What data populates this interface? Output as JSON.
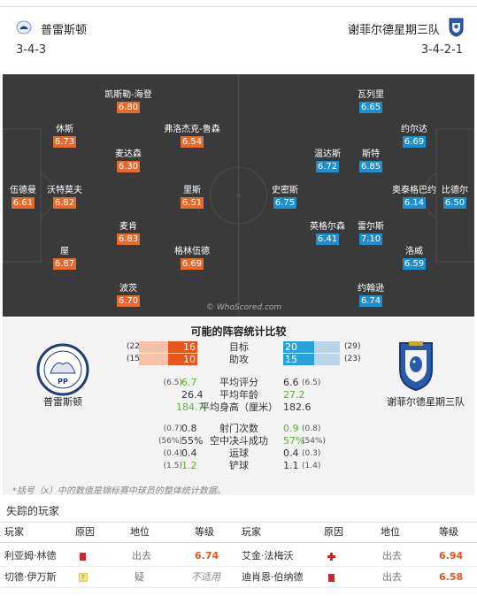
{
  "top_cut": "·",
  "header": {
    "home_team": "普雷斯顿",
    "home_formation": "3-4-3",
    "away_team": "谢菲尔德星期三队",
    "away_formation": "3-4-2-1",
    "home_color": "#e66a2c",
    "away_color": "#1d8fce"
  },
  "pitch": {
    "watermark": "© WhoScored.com",
    "home_players": [
      {
        "name": "伍德曼",
        "rating": "6.61"
      },
      {
        "name": "休斯",
        "rating": "6.73"
      },
      {
        "name": "沃特莫夫",
        "rating": "6.82"
      },
      {
        "name": "屋",
        "rating": "6.87"
      },
      {
        "name": "凯斯勒-海登",
        "rating": "6.80"
      },
      {
        "name": "麦达森",
        "rating": "6.30"
      },
      {
        "name": "麦肯",
        "rating": "6.83"
      },
      {
        "name": "波茨",
        "rating": "6.70"
      },
      {
        "name": "弗洛杰克-鲁森",
        "rating": "6.54"
      },
      {
        "name": "里斯",
        "rating": "6.51"
      },
      {
        "name": "格林伍德",
        "rating": "6.69"
      }
    ],
    "away_players": [
      {
        "name": "比德尔",
        "rating": "6.50"
      },
      {
        "name": "约尔达",
        "rating": "6.69"
      },
      {
        "name": "奥泰格巴约",
        "rating": "6.14"
      },
      {
        "name": "洛威",
        "rating": "6.59"
      },
      {
        "name": "瓦列里",
        "rating": "6.65"
      },
      {
        "name": "斯特",
        "rating": "6.85"
      },
      {
        "name": "雷尔斯",
        "rating": "7.10"
      },
      {
        "name": "约翰逊",
        "rating": "6.74"
      },
      {
        "name": "温达斯",
        "rating": "6.72"
      },
      {
        "name": "英格尔森",
        "rating": "6.41"
      },
      {
        "name": "史密斯",
        "rating": "6.75"
      }
    ]
  },
  "comparison": {
    "title": "可能的阵容统计比较",
    "home_crest_label": "普雷斯顿",
    "away_crest_label": "谢菲尔德星期三队",
    "home_crest_initials": "PP",
    "bars": [
      {
        "label": "目标",
        "home": "16",
        "home_paren": "(22)",
        "away": "20",
        "away_paren": "(29)",
        "home_frac": 0.5,
        "away_frac": 0.55
      },
      {
        "label": "助攻",
        "home": "10",
        "home_paren": "(15)",
        "away": "15",
        "away_paren": "(23)",
        "home_frac": 0.5,
        "away_frac": 0.55
      }
    ],
    "stats_top": [
      {
        "label": "平均评分",
        "home": "6.7",
        "home_paren": "(6.5)",
        "away": "6.6",
        "away_paren": "(6.5)",
        "home_green": true,
        "away_green": false
      },
      {
        "label": "平均年龄",
        "home": "26.4",
        "home_paren": "",
        "away": "27.2",
        "away_paren": "",
        "home_green": false,
        "away_green": true
      },
      {
        "label": "平均身高（厘米）",
        "home": "184.7",
        "home_paren": "",
        "away": "182.6",
        "away_paren": "",
        "home_green": true,
        "away_green": false
      }
    ],
    "stats_bottom": [
      {
        "label": "射门次数",
        "home": "0.8",
        "home_paren": "(0.7)",
        "away": "0.9",
        "away_paren": "(0.8)",
        "home_green": false,
        "away_green": true
      },
      {
        "label": "空中决斗成功",
        "home": "55%",
        "home_paren": "(56%)",
        "away": "57%",
        "away_paren": "(54%)",
        "home_green": false,
        "away_green": true
      },
      {
        "label": "运球",
        "home": "0.4",
        "home_paren": "(0.4)",
        "away": "0.4",
        "away_paren": "(0.3)",
        "home_green": false,
        "away_green": false
      },
      {
        "label": "铲球",
        "home": "1.2",
        "home_paren": "(1.5)",
        "away": "1.1",
        "away_paren": "(1.4)",
        "home_green": true,
        "away_green": false
      }
    ],
    "footnote": "*括号（x）中的数值是锦标赛中球员的整体统计数据。"
  },
  "missing": {
    "title": "失踪的玩家",
    "headers": [
      "玩家",
      "原因",
      "地位",
      "等级",
      "玩家",
      "原因",
      "地位",
      "等级"
    ],
    "rows": [
      {
        "home_player": "利亚姆·林德",
        "home_reason": "red-card-icon",
        "home_status": "出去",
        "home_rating": "6.74",
        "away_player": "艾金·法梅沃",
        "away_reason": "injury-cross-icon",
        "away_status": "出去",
        "away_rating": "6.94"
      },
      {
        "home_player": "切德·伊万斯",
        "home_reason": "doubtful-icon",
        "home_status": "疑",
        "home_rating": "不适用",
        "away_player": "迪肖恩·伯纳德",
        "away_reason": "red-card-icon",
        "away_status": "出去",
        "away_rating": "6.58"
      }
    ]
  }
}
